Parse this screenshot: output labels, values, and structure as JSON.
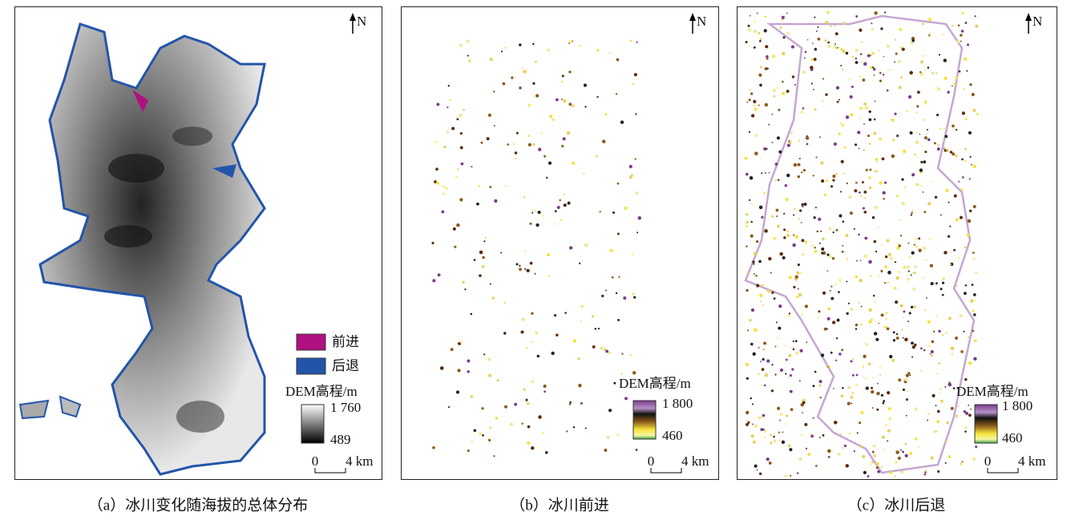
{
  "panels": [
    {
      "caption": "（a）冰川变化随海拔的总体分布",
      "north": "N",
      "legend": {
        "advance": "前进",
        "retreat": "后退",
        "dem_title": "DEM高程/m",
        "dem_max": "1 760",
        "dem_min": "489"
      },
      "scale": {
        "zero": "0",
        "length": "4 km"
      }
    },
    {
      "caption": "（b）冰川前进",
      "north": "N",
      "legend": {
        "dem_title": "DEM高程/m",
        "dem_max": "1 800",
        "dem_min": "460"
      },
      "scale": {
        "zero": "0",
        "length": "4 km"
      }
    },
    {
      "caption": "（c）冰川后退",
      "north": "N",
      "legend": {
        "dem_title": "DEM高程/m",
        "dem_max": "1 800",
        "dem_min": "460"
      },
      "scale": {
        "zero": "0",
        "length": "4 km"
      }
    }
  ]
}
